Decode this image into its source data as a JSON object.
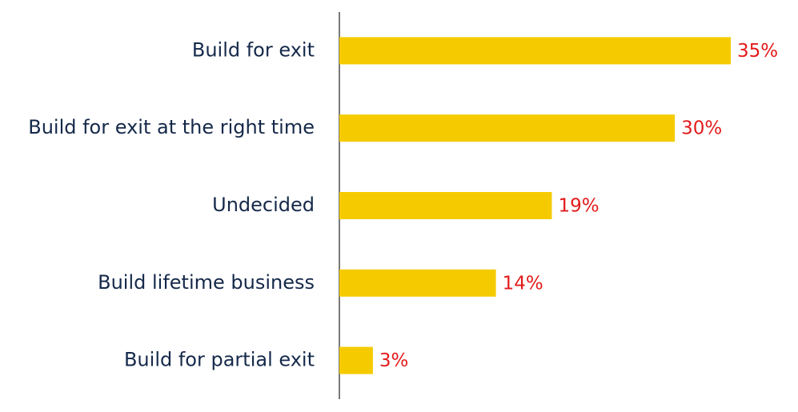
{
  "chart_data": {
    "type": "bar",
    "orientation": "horizontal",
    "categories": [
      "Build for exit",
      "Build for exit at the right time",
      "Undecided",
      "Build lifetime business",
      "Build for partial exit"
    ],
    "values": [
      35,
      30,
      19,
      14,
      3
    ],
    "value_labels": [
      "35%",
      "30%",
      "19%",
      "14%",
      "3%"
    ],
    "color": "#f5cb00",
    "label_color": "#e31b1b"
  }
}
